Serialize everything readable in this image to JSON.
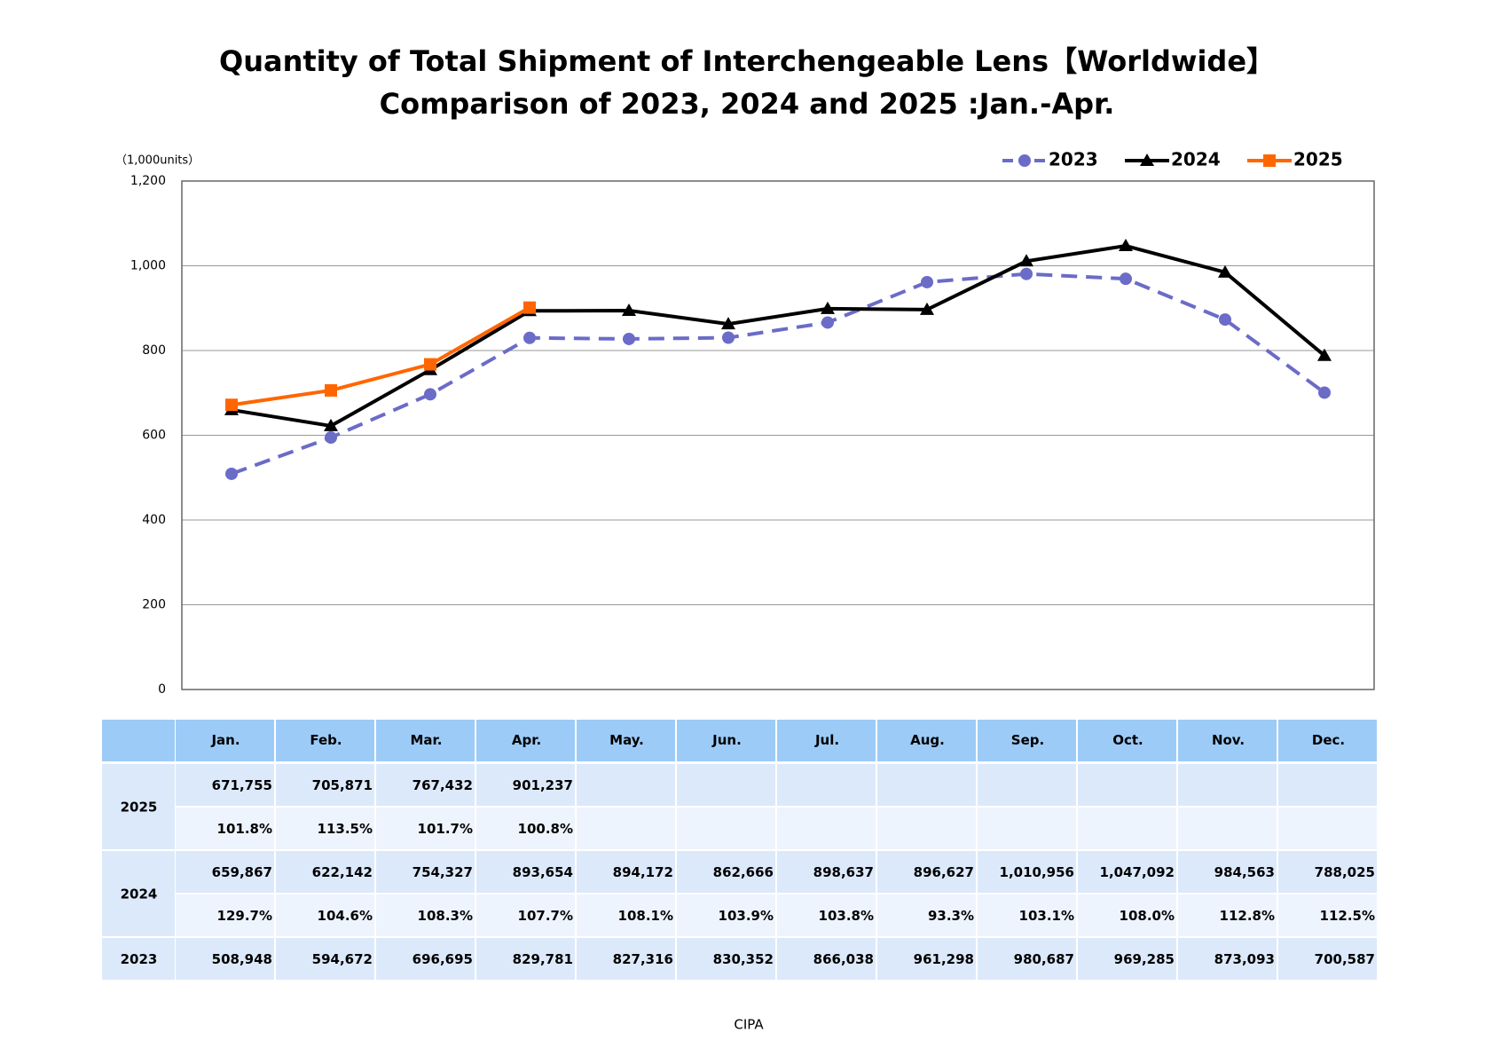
{
  "chart_data": {
    "type": "line",
    "title": [
      "Quantity of Total Shipment of Interchengeable Lens【Worldwide】",
      "Comparison of 2023, 2024 and 2025 :Jan.-Apr."
    ],
    "y_label": "（1,000units）",
    "categories": [
      "Jan.",
      "Feb.",
      "Mar.",
      "Apr.",
      "May.",
      "Jun.",
      "Jul.",
      "Aug.",
      "Sep.",
      "Oct.",
      "Nov.",
      "Dec."
    ],
    "series": [
      {
        "name": "2023",
        "color": "#6b6bc8",
        "dash": true,
        "marker": "circle",
        "values": [
          508.948,
          594.672,
          696.695,
          829.781,
          827.316,
          830.352,
          866.038,
          961.298,
          980.687,
          969.285,
          873.093,
          700.587
        ]
      },
      {
        "name": "2024",
        "color": "#000000",
        "dash": false,
        "marker": "triangle",
        "values": [
          659.867,
          622.142,
          754.327,
          893.654,
          894.172,
          862.666,
          898.637,
          896.627,
          1010.956,
          1047.092,
          984.563,
          788.025
        ]
      },
      {
        "name": "2025",
        "color": "#ff6600",
        "dash": false,
        "marker": "square",
        "values": [
          671.755,
          705.871,
          767.432,
          901.237,
          null,
          null,
          null,
          null,
          null,
          null,
          null,
          null
        ]
      }
    ],
    "ylim": [
      0,
      1200
    ],
    "yticks": [
      0,
      200,
      400,
      600,
      800,
      {
        "value": 1000,
        "label": "1,000"
      },
      {
        "value": 1200,
        "label": "1,200"
      }
    ],
    "grid": true,
    "legend": "top-right"
  },
  "table": {
    "rows": [
      {
        "series": 2,
        "values": [
          "671,755",
          "705,871",
          "767,432",
          "901,237",
          "",
          "",
          "",
          "",
          "",
          "",
          "",
          ""
        ],
        "ratios": [
          "101.8%",
          "113.5%",
          "101.7%",
          "100.8%",
          "",
          "",
          "",
          "",
          "",
          "",
          "",
          ""
        ]
      },
      {
        "series": 1,
        "values": [
          "659,867",
          "622,142",
          "754,327",
          "893,654",
          "894,172",
          "862,666",
          "898,637",
          "896,627",
          "1,010,956",
          "1,047,092",
          "984,563",
          "788,025"
        ],
        "ratios": [
          "129.7%",
          "104.6%",
          "108.3%",
          "107.7%",
          "108.1%",
          "103.9%",
          "103.8%",
          "93.3%",
          "103.1%",
          "108.0%",
          "112.8%",
          "112.5%"
        ]
      },
      {
        "series": 0,
        "values": [
          "508,948",
          "594,672",
          "696,695",
          "829,781",
          "827,316",
          "830,352",
          "866,038",
          "961,298",
          "980,687",
          "969,285",
          "873,093",
          "700,587"
        ]
      }
    ]
  },
  "source": "CIPA"
}
